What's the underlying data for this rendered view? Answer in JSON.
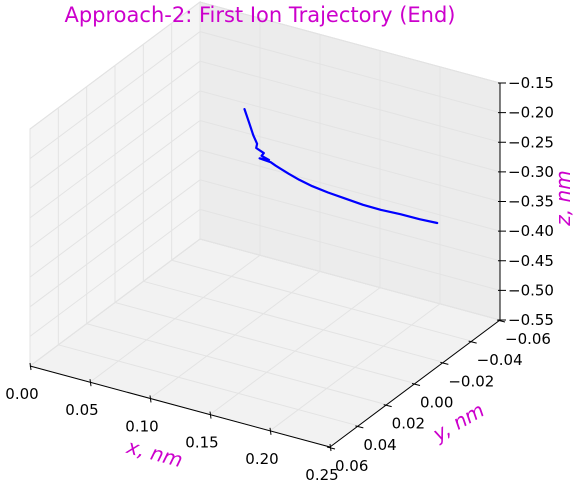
{
  "chart_data": {
    "type": "line3d",
    "title": "Approach-2: First Ion Trajectory (End)",
    "xlabel": "x, nm",
    "ylabel": "y, nm",
    "zlabel": "z, nm",
    "xlim": [
      0.0,
      0.25
    ],
    "ylim": [
      -0.06,
      0.06
    ],
    "zlim": [
      -0.55,
      -0.15
    ],
    "xticks": [
      "0.00",
      "0.05",
      "0.10",
      "0.15",
      "0.20",
      "0.25"
    ],
    "yticks": [
      "−0.06",
      "−0.04",
      "−0.02",
      "0.00",
      "0.02",
      "0.04",
      "0.06"
    ],
    "zticks": [
      "−0.15",
      "−0.20",
      "−0.25",
      "−0.30",
      "−0.35",
      "−0.40",
      "−0.45",
      "−0.50",
      "−0.55"
    ],
    "grid": true,
    "line_color": "#0000ff",
    "label_color": "#cc00cc",
    "series": [
      {
        "points": [
          [
            0.115,
            0.006,
            -0.15
          ],
          [
            0.118,
            0.005,
            -0.175
          ],
          [
            0.12,
            0.004,
            -0.195
          ],
          [
            0.122,
            0.003,
            -0.21
          ],
          [
            0.12,
            0.002,
            -0.22
          ],
          [
            0.124,
            0.0,
            -0.23
          ],
          [
            0.121,
            -0.001,
            -0.238
          ],
          [
            0.126,
            -0.002,
            -0.244
          ],
          [
            0.117,
            -0.003,
            -0.248
          ],
          [
            0.125,
            -0.004,
            -0.252
          ],
          [
            0.128,
            -0.005,
            -0.258
          ],
          [
            0.13,
            -0.007,
            -0.266
          ],
          [
            0.133,
            -0.01,
            -0.278
          ],
          [
            0.137,
            -0.014,
            -0.293
          ],
          [
            0.142,
            -0.019,
            -0.31
          ],
          [
            0.148,
            -0.025,
            -0.328
          ],
          [
            0.155,
            -0.031,
            -0.345
          ],
          [
            0.163,
            -0.037,
            -0.362
          ],
          [
            0.171,
            -0.043,
            -0.377
          ],
          [
            0.18,
            -0.049,
            -0.39
          ],
          [
            0.19,
            -0.054,
            -0.402
          ],
          [
            0.2,
            -0.058,
            -0.41
          ]
        ]
      }
    ]
  }
}
